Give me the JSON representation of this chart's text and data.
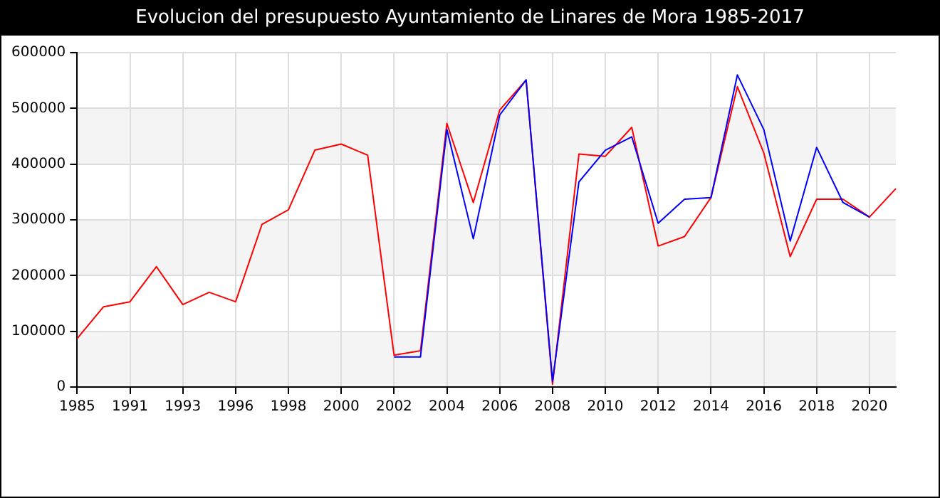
{
  "chart_data": {
    "type": "line",
    "title": "Evolucion del presupuesto Ayuntamiento de Linares de Mora 1985-2017",
    "categories": [
      "1985",
      null,
      "1991",
      null,
      "1993",
      null,
      "1996",
      null,
      "1998",
      null,
      "2000",
      null,
      "2002",
      null,
      "2004",
      null,
      "2006",
      null,
      "2008",
      null,
      "2010",
      null,
      "2012",
      null,
      "2014",
      null,
      "2016",
      null,
      "2018",
      null,
      "2020",
      null
    ],
    "series": [
      {
        "color": "#0000ff",
        "values": [
          null,
          null,
          null,
          null,
          null,
          null,
          null,
          null,
          null,
          null,
          null,
          null,
          54000,
          54000,
          462000,
          266000,
          488000,
          551000,
          10000,
          368000,
          425000,
          449000,
          294000,
          337000,
          340000,
          560000,
          462000,
          262000,
          430000,
          331000,
          305000,
          null
        ]
      },
      {
        "color": "#ff0000",
        "values": [
          87000,
          144000,
          153000,
          216000,
          148000,
          170000,
          153000,
          292000,
          318000,
          425000,
          436000,
          416000,
          57000,
          65000,
          473000,
          331000,
          497000,
          551000,
          5000,
          418000,
          414000,
          466000,
          253000,
          270000,
          340000,
          539000,
          420000,
          234000,
          337000,
          337000,
          305000,
          356000
        ]
      }
    ],
    "ylim": [
      0,
      600000
    ],
    "yticks": [
      0,
      100000,
      200000,
      300000,
      400000,
      500000,
      600000
    ],
    "grid": true,
    "legend": false,
    "marker": "none",
    "line_style": "solid"
  }
}
